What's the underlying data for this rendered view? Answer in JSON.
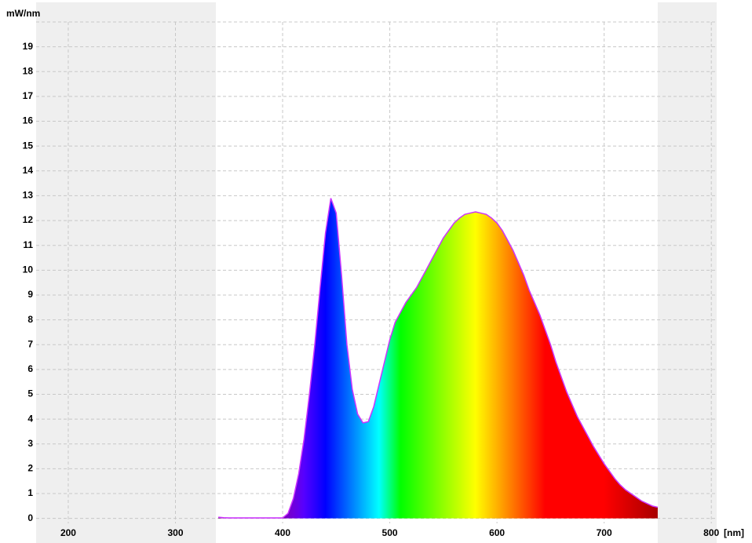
{
  "chart_data": {
    "type": "area",
    "y_label": "mW/nm",
    "x_label": "[nm]",
    "x": [
      340,
      345,
      350,
      355,
      360,
      365,
      370,
      375,
      380,
      385,
      390,
      395,
      400,
      405,
      410,
      415,
      420,
      425,
      430,
      435,
      440,
      445,
      450,
      455,
      460,
      465,
      470,
      475,
      480,
      485,
      490,
      495,
      500,
      505,
      510,
      515,
      520,
      525,
      530,
      535,
      540,
      545,
      550,
      555,
      560,
      565,
      570,
      575,
      580,
      585,
      590,
      595,
      600,
      605,
      610,
      615,
      620,
      625,
      630,
      635,
      640,
      645,
      650,
      655,
      660,
      665,
      670,
      675,
      680,
      685,
      690,
      695,
      700,
      705,
      710,
      715,
      720,
      725,
      730,
      735,
      740,
      745,
      750
    ],
    "series": [
      {
        "color": "#cc33ff",
        "values": [
          0.05,
          0.03,
          0.02,
          0.02,
          0.02,
          0.02,
          0.02,
          0.02,
          0.02,
          0.02,
          0.02,
          0.02,
          0.02,
          0.2,
          0.8,
          1.8,
          3.2,
          5.0,
          7.0,
          9.3,
          11.5,
          12.9,
          12.3,
          9.8,
          7.0,
          5.2,
          4.2,
          3.85,
          3.9,
          4.5,
          5.4,
          6.3,
          7.2,
          7.9,
          8.3,
          8.7,
          9.0,
          9.3,
          9.7,
          10.1,
          10.5,
          10.9,
          11.3,
          11.6,
          11.9,
          12.1,
          12.25,
          12.3,
          12.35,
          12.3,
          12.25,
          12.1,
          11.9,
          11.6,
          11.2,
          10.8,
          10.3,
          9.8,
          9.2,
          8.7,
          8.2,
          7.6,
          7.0,
          6.3,
          5.7,
          5.1,
          4.6,
          4.1,
          3.7,
          3.3,
          2.9,
          2.55,
          2.2,
          1.9,
          1.6,
          1.35,
          1.15,
          1.0,
          0.85,
          0.7,
          0.6,
          0.5,
          0.45
        ]
      }
    ],
    "xlim": [
      170,
      805
    ],
    "xticks": [
      200,
      300,
      400,
      500,
      600,
      700,
      800
    ],
    "ylim": [
      -0.2,
      20
    ],
    "yticks": [
      0,
      1,
      2,
      3,
      4,
      5,
      6,
      7,
      8,
      9,
      10,
      11,
      12,
      13,
      14,
      15,
      16,
      17,
      18,
      19
    ],
    "grid": true
  }
}
